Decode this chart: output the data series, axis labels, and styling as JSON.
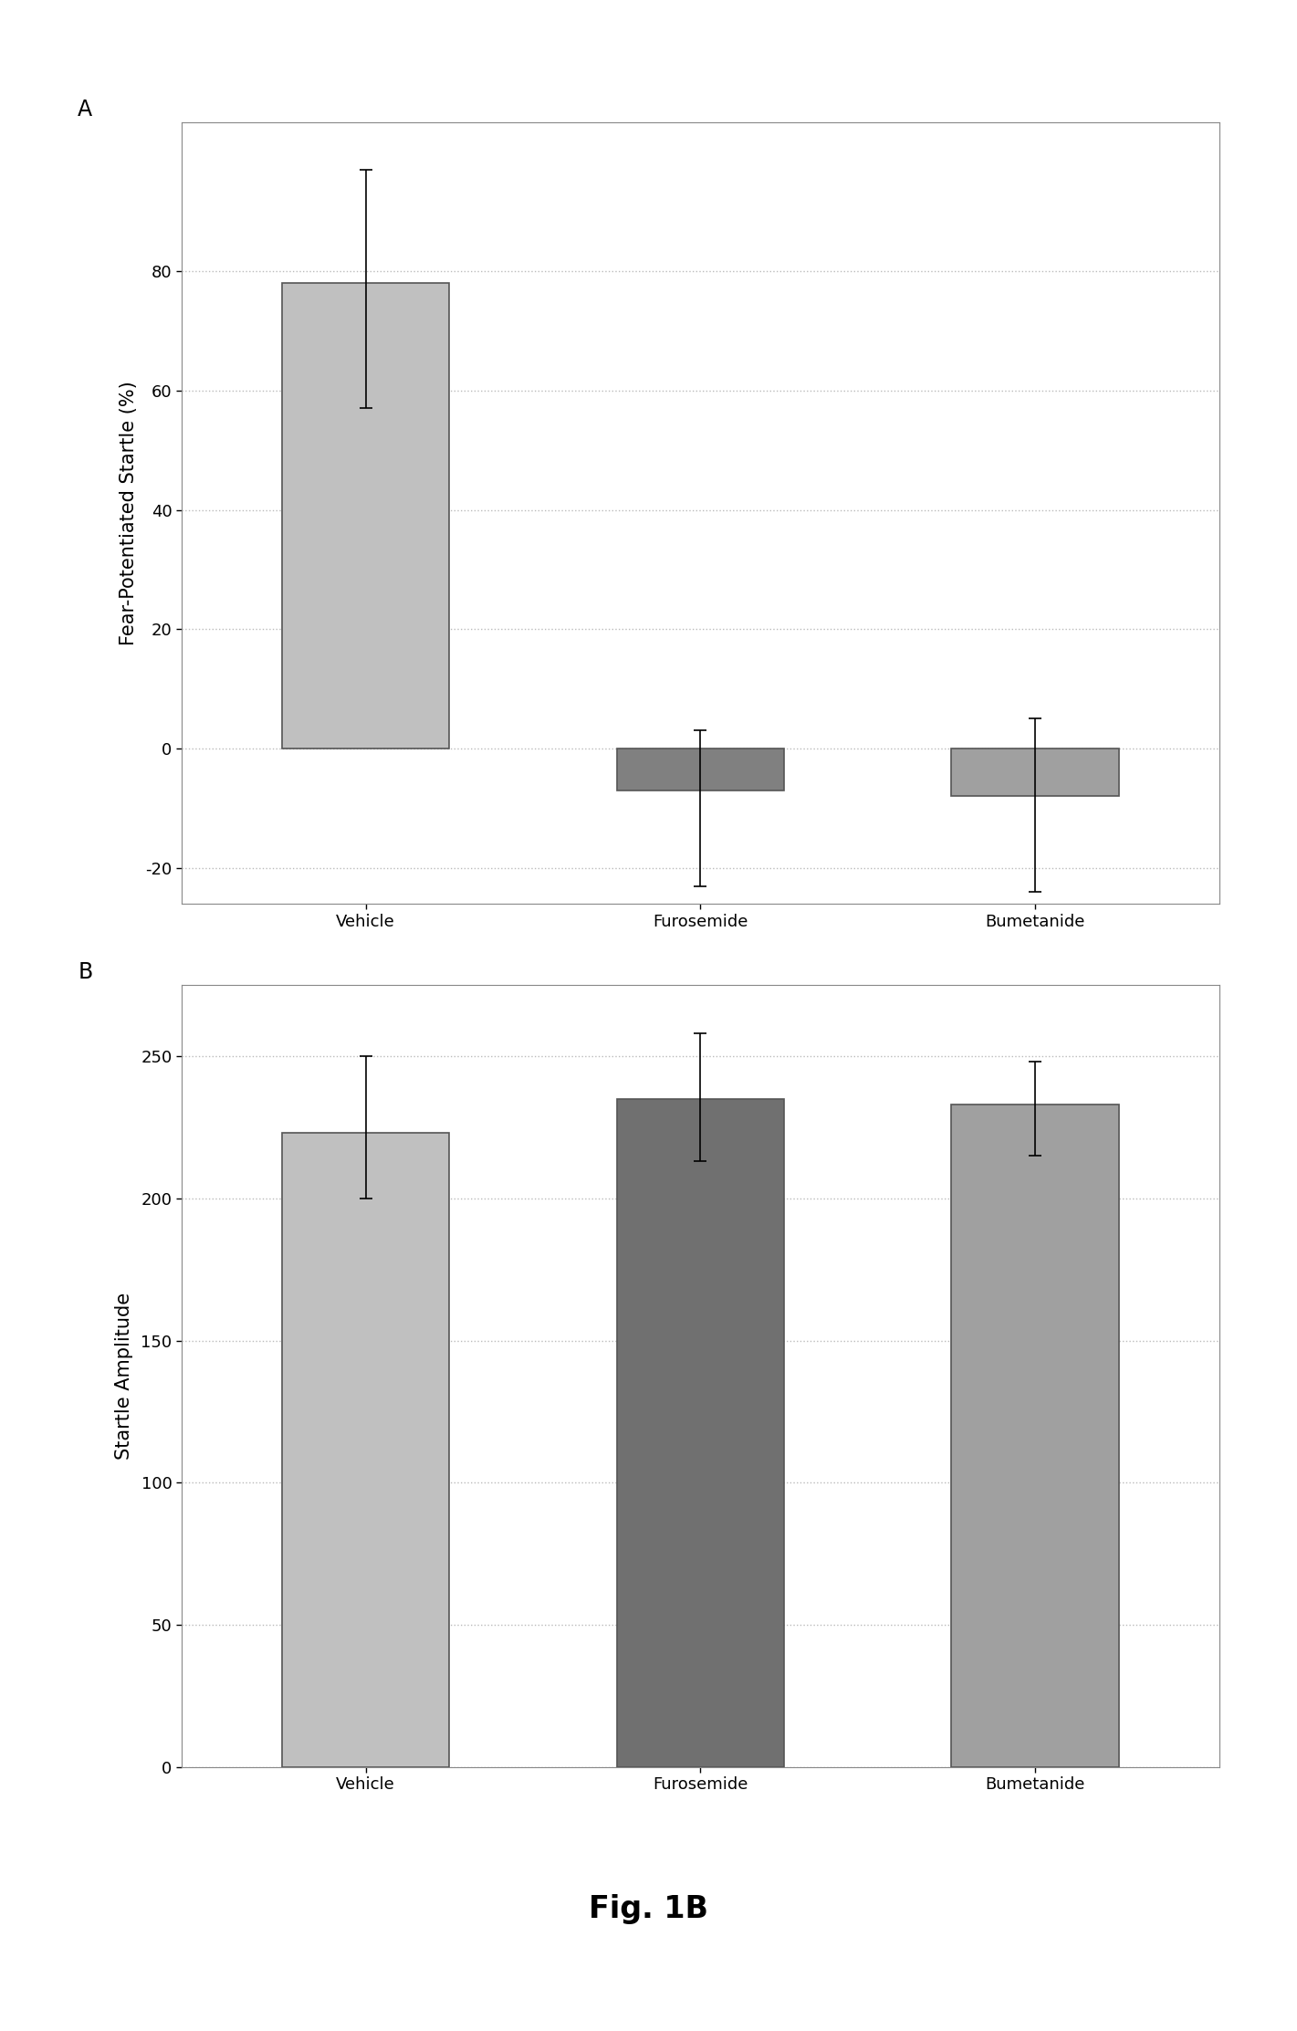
{
  "panel_A": {
    "title": "A",
    "ylabel": "Fear-Potentiated Startle (%)",
    "categories": [
      "Vehicle",
      "Furosemide",
      "Bumetanide"
    ],
    "values": [
      78,
      -7,
      -8
    ],
    "error_upper": [
      97,
      3,
      5
    ],
    "error_lower": [
      57,
      -23,
      -24
    ],
    "bar_colors": [
      "#c0c0c0",
      "#808080",
      "#a0a0a0"
    ],
    "bar_edgecolors": [
      "#555555",
      "#555555",
      "#555555"
    ],
    "ylim": [
      -26,
      105
    ],
    "yticks": [
      -20,
      0,
      20,
      40,
      60,
      80
    ],
    "grid_color": "#bbbbbb",
    "bg_color": "#ffffff"
  },
  "panel_B": {
    "title": "B",
    "ylabel": "Startle Amplitude",
    "categories": [
      "Vehicle",
      "Furosemide",
      "Bumetanide"
    ],
    "values": [
      223,
      235,
      233
    ],
    "error_upper": [
      250,
      258,
      248
    ],
    "error_lower": [
      200,
      213,
      215
    ],
    "bar_colors": [
      "#c0c0c0",
      "#707070",
      "#a0a0a0"
    ],
    "bar_edgecolors": [
      "#555555",
      "#555555",
      "#555555"
    ],
    "ylim": [
      0,
      275
    ],
    "yticks": [
      0,
      50,
      100,
      150,
      200,
      250
    ],
    "grid_color": "#bbbbbb",
    "bg_color": "#ffffff"
  },
  "fig_label": "Fig. 1B",
  "fig_bg_color": "#ffffff",
  "bar_width": 0.5,
  "capsize": 5,
  "linewidth": 1.2,
  "label_fontsize": 15,
  "tick_fontsize": 13,
  "panel_label_fontsize": 17,
  "figlabel_fontsize": 24
}
